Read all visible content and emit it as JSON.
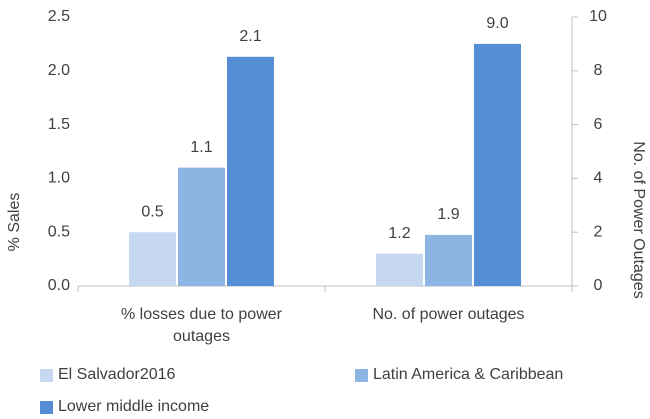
{
  "chart_data": {
    "type": "bar",
    "categories": [
      "% losses due to power outages",
      "No. of power outages"
    ],
    "category_axis": [
      "y",
      "y2"
    ],
    "series": [
      {
        "name": "El Salvador2016",
        "color": "#c6d9f0",
        "values": [
          0.5,
          1.2
        ]
      },
      {
        "name": "Latin America & Caribbean",
        "color": "#8eb4e3",
        "values": [
          1.1,
          1.9
        ]
      },
      {
        "name": "Lower middle income",
        "color": "#558ed5",
        "values": [
          2.13,
          9
        ],
        "value_labels": [
          "2.1",
          "9.0"
        ]
      }
    ],
    "ylabel": "%  Sales",
    "y2label": "No. of Power Outages",
    "ylim": [
      0,
      2.5
    ],
    "yticks": [
      {
        "value": 0,
        "label": "0.0"
      },
      {
        "value": 0.5,
        "label": "0.5"
      },
      {
        "value": 1,
        "label": "1.0"
      },
      {
        "value": 1.5,
        "label": "1.5"
      },
      {
        "value": 2,
        "label": "2.0"
      },
      {
        "value": 2.5,
        "label": "2.5"
      }
    ],
    "y2lim": [
      0,
      10
    ],
    "y2ticks": [
      0,
      2,
      4,
      6,
      8,
      10
    ],
    "grid": false
  }
}
